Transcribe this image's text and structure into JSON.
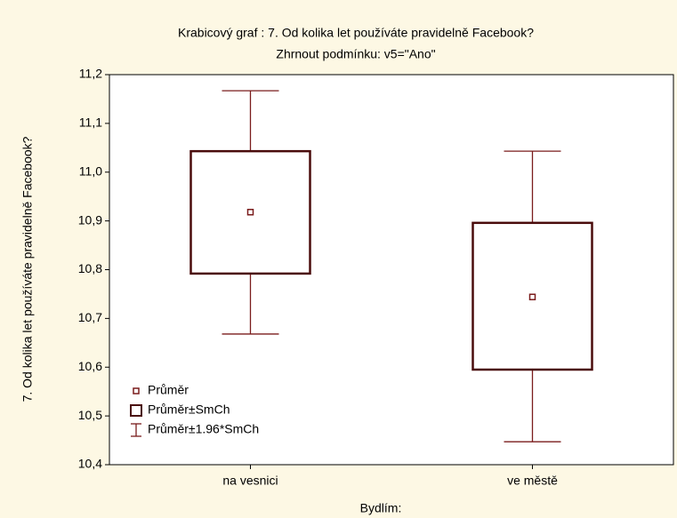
{
  "chart_data": {
    "type": "box",
    "title": "Krabicový graf :  7. Od kolika let používáte pravidelně Facebook?",
    "subtitle": "Zhrnout podmínku: v5=\"Ano\"",
    "x_label": "Bydlím:",
    "y_label": "7. Od kolika let používáte pravidelně Facebook?",
    "categories": [
      "na vesnici",
      "ve městě"
    ],
    "mean": [
      10.918,
      10.744
    ],
    "box_low": [
      10.792,
      10.595
    ],
    "box_high": [
      11.043,
      10.896
    ],
    "whisker_low": [
      10.668,
      10.447
    ],
    "whisker_high": [
      11.167,
      11.043
    ],
    "legend": [
      "Průměr",
      "Průměr±SmCh",
      "Průměr±1.96*SmCh"
    ],
    "color": "#7a1c1c",
    "ylim": [
      10.4,
      11.2
    ],
    "yticks": [
      {
        "value": 10.4,
        "label": "10,4"
      },
      {
        "value": 10.5,
        "label": "10,5"
      },
      {
        "value": 10.6,
        "label": "10,6"
      },
      {
        "value": 10.7,
        "label": "10,7"
      },
      {
        "value": 10.8,
        "label": "10,8"
      },
      {
        "value": 10.9,
        "label": "10,9"
      },
      {
        "value": 11.0,
        "label": "11,0"
      },
      {
        "value": 11.1,
        "label": "11,1"
      },
      {
        "value": 11.2,
        "label": "11,2"
      }
    ]
  }
}
